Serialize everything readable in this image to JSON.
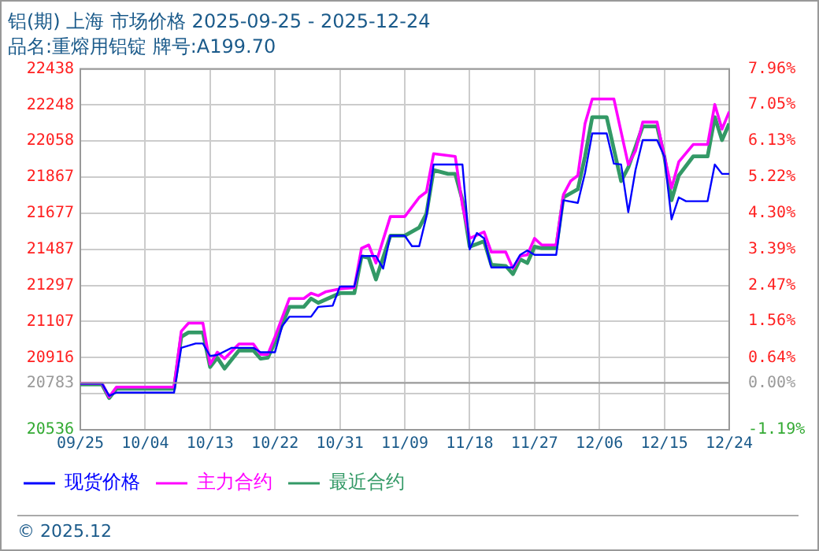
{
  "chart_data": {
    "type": "line",
    "title": "铝(期) 上海 市场价格 2025-09-25 - 2025-12-24",
    "subtitle": "品名:重熔用铝锭 牌号:A199.70",
    "annotations": [
      "© 2025.12"
    ],
    "xlim": [
      "2025-09-25",
      "2025-12-24"
    ],
    "xticks": [
      {
        "value": "2025-09-25",
        "label": "09/25"
      },
      {
        "value": "2025-10-04",
        "label": "10/04"
      },
      {
        "value": "2025-10-13",
        "label": "10/13"
      },
      {
        "value": "2025-10-22",
        "label": "10/22"
      },
      {
        "value": "2025-10-31",
        "label": "10/31"
      },
      {
        "value": "2025-11-09",
        "label": "11/09"
      },
      {
        "value": "2025-11-18",
        "label": "11/18"
      },
      {
        "value": "2025-11-27",
        "label": "11/27"
      },
      {
        "value": "2025-12-06",
        "label": "12/06"
      },
      {
        "value": "2025-12-15",
        "label": "12/15"
      },
      {
        "value": "2025-12-24",
        "label": "12/24"
      }
    ],
    "ylim": [
      20536,
      22438
    ],
    "yticks": [
      20536,
      {
        "value": 20726,
        "label": null
      },
      20783,
      20916,
      21107,
      21297,
      21487,
      21677,
      21867,
      22058,
      22248,
      22438
    ],
    "y2lim": [
      -1.19,
      7.96
    ],
    "y2ticks": [
      {
        "value": -1.19,
        "label": "-1.19%"
      },
      {
        "value": 0,
        "label": "0.00%"
      },
      {
        "value": 0.64,
        "label": "0.64%"
      },
      {
        "value": 1.56,
        "label": "1.56%"
      },
      {
        "value": 2.47,
        "label": "2.47%"
      },
      {
        "value": 3.39,
        "label": "3.39%"
      },
      {
        "value": 4.3,
        "label": "4.30%"
      },
      {
        "value": 5.22,
        "label": "5.22%"
      },
      {
        "value": 6.13,
        "label": "6.13%"
      },
      {
        "value": 7.05,
        "label": "7.05%"
      },
      {
        "value": 7.96,
        "label": "7.96%"
      }
    ],
    "ref_lines": [
      {
        "axis": "y",
        "value": 20783,
        "color": "#999999"
      }
    ],
    "grid": true,
    "legend": "bottom",
    "line_style": "solid",
    "marker": "none",
    "series": [
      {
        "name": "现货价格",
        "color": "#0000ff",
        "x": [
          "2025-09-25",
          "2025-09-28",
          "2025-09-29",
          "2025-09-30",
          "2025-10-08",
          "2025-10-09",
          "2025-10-11",
          "2025-10-12",
          "2025-10-13",
          "2025-10-14",
          "2025-10-16",
          "2025-10-19",
          "2025-10-20",
          "2025-10-22",
          "2025-10-23",
          "2025-10-24",
          "2025-10-27",
          "2025-10-28",
          "2025-10-30",
          "2025-10-31",
          "2025-11-02",
          "2025-11-03",
          "2025-11-05",
          "2025-11-06",
          "2025-11-07",
          "2025-11-09",
          "2025-11-10",
          "2025-11-11",
          "2025-11-12",
          "2025-11-13",
          "2025-11-17",
          "2025-11-18",
          "2025-11-19",
          "2025-11-20",
          "2025-11-21",
          "2025-11-24",
          "2025-11-25",
          "2025-11-26",
          "2025-11-27",
          "2025-11-30",
          "2025-12-01",
          "2025-12-03",
          "2025-12-04",
          "2025-12-05",
          "2025-12-07",
          "2025-12-08",
          "2025-12-09",
          "2025-12-10",
          "2025-12-11",
          "2025-12-12",
          "2025-12-14",
          "2025-12-15",
          "2025-12-16",
          "2025-12-17",
          "2025-12-18",
          "2025-12-21",
          "2025-12-22",
          "2025-12-23",
          "2025-12-24"
        ],
        "values": [
          20780,
          20780,
          20715,
          20732,
          20732,
          20968,
          20991,
          20991,
          20925,
          20930,
          20968,
          20968,
          20945,
          20945,
          21083,
          21132,
          21132,
          21184,
          21190,
          21291,
          21291,
          21452,
          21452,
          21386,
          21559,
          21559,
          21504,
          21504,
          21660,
          21934,
          21934,
          21487,
          21573,
          21545,
          21392,
          21392,
          21458,
          21481,
          21458,
          21458,
          21746,
          21732,
          21890,
          22098,
          22098,
          21939,
          21935,
          21683,
          21905,
          22063,
          22063,
          21977,
          21645,
          21761,
          21741,
          21741,
          21934,
          21885,
          21885
        ]
      },
      {
        "name": "主力合约",
        "color": "#ff00ff",
        "x": [
          "2025-09-25",
          "2025-09-28",
          "2025-09-29",
          "2025-09-30",
          "2025-10-08",
          "2025-10-09",
          "2025-10-10",
          "2025-10-12",
          "2025-10-13",
          "2025-10-14",
          "2025-10-15",
          "2025-10-17",
          "2025-10-19",
          "2025-10-20",
          "2025-10-21",
          "2025-10-22",
          "2025-10-24",
          "2025-10-26",
          "2025-10-27",
          "2025-10-28",
          "2025-10-29",
          "2025-10-31",
          "2025-11-02",
          "2025-11-03",
          "2025-11-04",
          "2025-11-05",
          "2025-11-07",
          "2025-11-09",
          "2025-11-11",
          "2025-11-12",
          "2025-11-13",
          "2025-11-16",
          "2025-11-17",
          "2025-11-18",
          "2025-11-20",
          "2025-11-21",
          "2025-11-23",
          "2025-11-24",
          "2025-11-25",
          "2025-11-26",
          "2025-11-27",
          "2025-11-28",
          "2025-11-30",
          "2025-12-01",
          "2025-12-02",
          "2025-12-03",
          "2025-12-04",
          "2025-12-05",
          "2025-12-08",
          "2025-12-10",
          "2025-12-11",
          "2025-12-12",
          "2025-12-14",
          "2025-12-15",
          "2025-12-16",
          "2025-12-17",
          "2025-12-19",
          "2025-12-21",
          "2025-12-22",
          "2025-12-23",
          "2025-12-24"
        ],
        "values": [
          20781,
          20781,
          20709,
          20761,
          20761,
          21055,
          21098,
          21098,
          20882,
          20945,
          20911,
          20988,
          20988,
          20934,
          20934,
          21026,
          21228,
          21228,
          21256,
          21243,
          21263,
          21279,
          21285,
          21493,
          21510,
          21415,
          21660,
          21660,
          21761,
          21790,
          21991,
          21977,
          21718,
          21545,
          21579,
          21473,
          21473,
          21386,
          21452,
          21458,
          21545,
          21510,
          21510,
          21775,
          21847,
          21876,
          22150,
          22280,
          22280,
          21934,
          22006,
          22158,
          22158,
          21977,
          21810,
          21948,
          22040,
          22040,
          22251,
          22121,
          22213
        ]
      },
      {
        "name": "最近合约",
        "color": "#339966",
        "x": [
          "2025-09-25",
          "2025-09-28",
          "2025-09-29",
          "2025-09-30",
          "2025-10-08",
          "2025-10-09",
          "2025-10-10",
          "2025-10-12",
          "2025-10-13",
          "2025-10-14",
          "2025-10-15",
          "2025-10-17",
          "2025-10-19",
          "2025-10-20",
          "2025-10-21",
          "2025-10-22",
          "2025-10-24",
          "2025-10-26",
          "2025-10-27",
          "2025-10-28",
          "2025-10-31",
          "2025-11-02",
          "2025-11-03",
          "2025-11-04",
          "2025-11-05",
          "2025-11-07",
          "2025-11-09",
          "2025-11-11",
          "2025-11-12",
          "2025-11-13",
          "2025-11-15",
          "2025-11-16",
          "2025-11-17",
          "2025-11-18",
          "2025-11-20",
          "2025-11-21",
          "2025-11-23",
          "2025-11-24",
          "2025-11-25",
          "2025-11-26",
          "2025-11-27",
          "2025-11-28",
          "2025-11-30",
          "2025-12-01",
          "2025-12-03",
          "2025-12-04",
          "2025-12-05",
          "2025-12-07",
          "2025-12-09",
          "2025-12-10",
          "2025-12-12",
          "2025-12-14",
          "2025-12-15",
          "2025-12-16",
          "2025-12-17",
          "2025-12-19",
          "2025-12-21",
          "2025-12-22",
          "2025-12-23",
          "2025-12-24"
        ],
        "values": [
          20775,
          20775,
          20703,
          20752,
          20752,
          21026,
          21049,
          21049,
          20867,
          20916,
          20859,
          20954,
          20954,
          20911,
          20916,
          20997,
          21184,
          21184,
          21228,
          21205,
          21256,
          21256,
          21450,
          21443,
          21328,
          21559,
          21559,
          21602,
          21674,
          21905,
          21885,
          21885,
          21746,
          21501,
          21530,
          21406,
          21400,
          21357,
          21435,
          21415,
          21501,
          21493,
          21493,
          21761,
          21804,
          21977,
          22184,
          22184,
          21847,
          21919,
          22135,
          22135,
          21977,
          21746,
          21876,
          21977,
          21977,
          22184,
          22063,
          22150
        ]
      }
    ]
  }
}
